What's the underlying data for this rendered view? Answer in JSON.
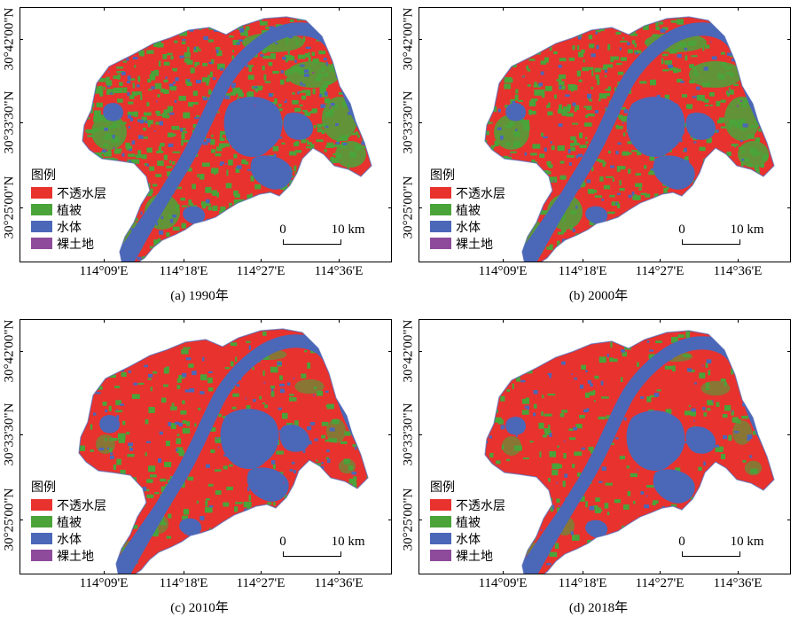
{
  "colors": {
    "impervious": "#e8322e",
    "vegetation": "#4aa43a",
    "water": "#4b67b8",
    "bare": "#8e4a9b"
  },
  "legend": {
    "title": "图例",
    "items": [
      {
        "label": "不透水层",
        "color": "#e8322e"
      },
      {
        "label": "植被",
        "color": "#4aa43a"
      },
      {
        "label": "水体",
        "color": "#4b67b8"
      },
      {
        "label": "裸土地",
        "color": "#8e4a9b"
      }
    ]
  },
  "x_ticks": [
    "114°09'E",
    "114°18'E",
    "114°27'E",
    "114°36'E"
  ],
  "y_ticks": [
    "30°42'00\"N",
    "30°33'30\"N",
    "30°25'00\"N"
  ],
  "scale_bar": {
    "start": "0",
    "end": "10 km"
  },
  "panels": [
    {
      "caption": "(a) 1990年"
    },
    {
      "caption": "(b) 2000年"
    },
    {
      "caption": "(c) 2010年"
    },
    {
      "caption": "(d) 2018年"
    }
  ]
}
